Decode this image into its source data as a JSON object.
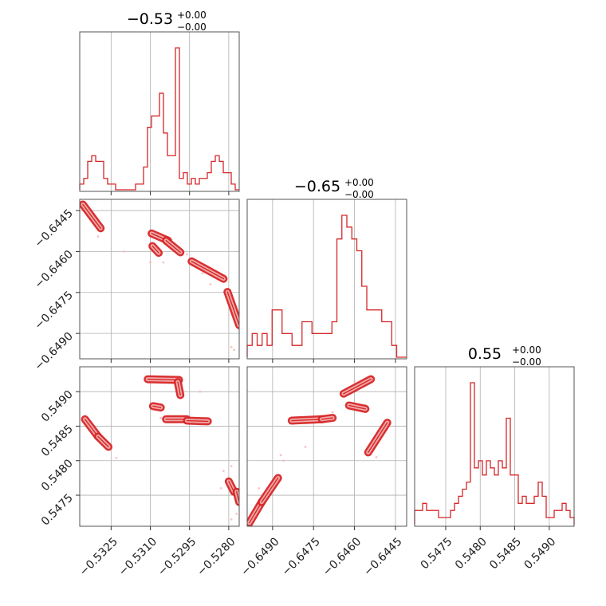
{
  "chart_data": {
    "type": "corner",
    "color": "#d62728",
    "grid": true,
    "parameters": [
      {
        "title_value": "−0.53",
        "title_plus": "+0.00",
        "title_minus": "−0.00",
        "range": [
          -0.5337,
          -0.5276
        ],
        "ticks": [
          -0.5325,
          -0.531,
          -0.5295,
          -0.528
        ],
        "tick_labels": [
          "−0.5325",
          "−0.5310",
          "−0.5295",
          "−0.5280"
        ]
      },
      {
        "title_value": "−0.65",
        "title_plus": "+0.00",
        "title_minus": "−0.00",
        "range": [
          -0.64993,
          -0.64409
        ],
        "ticks": [
          -0.6445,
          -0.646,
          -0.6475,
          -0.649
        ],
        "tick_labels": [
          "−0.6445",
          "−0.6460",
          "−0.6475",
          "−0.6490"
        ]
      },
      {
        "title_value": "0.55",
        "title_plus": "+0.00",
        "title_minus": "−0.00",
        "range": [
          0.54705,
          0.54936
        ],
        "ticks": [
          0.5475,
          0.548,
          0.5485,
          0.549
        ],
        "tick_labels": [
          "0.5475",
          "0.5480",
          "0.5485",
          "0.5490"
        ]
      }
    ],
    "histograms": [
      [
        1,
        2,
        5,
        6,
        5,
        5,
        2,
        1,
        1,
        0,
        0,
        0,
        0,
        0,
        1,
        1,
        4,
        11,
        13,
        13,
        17,
        10,
        6,
        6,
        25,
        2,
        3,
        1,
        2,
        1,
        2,
        2,
        3,
        5,
        6,
        5,
        3,
        3,
        1,
        0
      ],
      [
        1,
        2,
        1,
        2,
        1,
        4,
        4,
        2,
        2,
        1,
        1,
        3,
        3,
        2,
        2,
        2,
        2,
        3,
        10,
        12,
        11,
        10,
        9,
        6,
        4,
        4,
        4,
        3,
        3,
        1,
        0,
        0
      ],
      [
        2,
        2,
        3,
        2,
        2,
        2,
        1,
        1,
        1,
        2,
        3,
        4,
        5,
        6,
        20,
        8,
        9,
        7,
        9,
        8,
        7,
        9,
        8,
        15,
        7,
        7,
        3,
        4,
        3,
        3,
        4,
        6,
        4,
        1,
        1,
        2,
        2,
        3,
        2,
        1
      ]
    ],
    "pairs": [
      {
        "x_param": 0,
        "y_param": 1,
        "segments": [
          [
            [
              -0.53358,
              -0.64428
            ],
            [
              -0.5329,
              -0.64515
            ]
          ],
          [
            [
              -0.53095,
              -0.64534
            ],
            [
              -0.53032,
              -0.6456
            ]
          ],
          [
            [
              -0.5304,
              -0.6456
            ],
            [
              -0.52985,
              -0.64603
            ]
          ],
          [
            [
              -0.53092,
              -0.6458
            ],
            [
              -0.53068,
              -0.64605
            ]
          ],
          [
            [
              -0.52942,
              -0.64636
            ],
            [
              -0.5282,
              -0.647
            ]
          ],
          [
            [
              -0.52805,
              -0.64748
            ],
            [
              -0.5276,
              -0.6487
            ]
          ]
        ],
        "points": [
          [
            -0.533,
            -0.64545
          ],
          [
            -0.532,
            -0.646
          ],
          [
            -0.5305,
            -0.6464
          ],
          [
            -0.529,
            -0.6468
          ],
          [
            -0.5287,
            -0.6472
          ],
          [
            -0.5279,
            -0.6495
          ],
          [
            -0.5278,
            -0.6496
          ],
          [
            -0.531,
            -0.6464
          ],
          [
            -0.5296,
            -0.6461
          ]
        ]
      },
      {
        "x_param": 0,
        "y_param": 2,
        "segments": [
          [
            [
              -0.5311,
              0.54918
            ],
            [
              -0.5299,
              0.54917
            ]
          ],
          [
            [
              -0.52995,
              0.54914
            ],
            [
              -0.52985,
              0.54895
            ]
          ],
          [
            [
              -0.5309,
              0.54879
            ],
            [
              -0.5306,
              0.54877
            ]
          ],
          [
            [
              -0.5304,
              0.5486
            ],
            [
              -0.5296,
              0.5486
            ]
          ],
          [
            [
              -0.5296,
              0.54858
            ],
            [
              -0.5288,
              0.54857
            ]
          ],
          [
            [
              -0.5335,
              0.5486
            ],
            [
              -0.533,
              0.54835
            ]
          ],
          [
            [
              -0.533,
              0.54835
            ],
            [
              -0.5326,
              0.5482
            ]
          ],
          [
            [
              -0.528,
              0.5477
            ],
            [
              -0.5278,
              0.54755
            ]
          ],
          [
            [
              -0.5277,
              0.54755
            ],
            [
              -0.5276,
              0.5474
            ]
          ]
        ],
        "points": [
          [
            -0.5282,
            0.54785
          ],
          [
            -0.5279,
            0.54792
          ],
          [
            -0.5323,
            0.54804
          ],
          [
            -0.5291,
            0.549
          ],
          [
            -0.5306,
            0.54862
          ],
          [
            -0.5277,
            0.54723
          ],
          [
            -0.5279,
            0.54715
          ],
          [
            -0.5283,
            0.5476
          ]
        ]
      },
      {
        "x_param": 1,
        "y_param": 2,
        "segments": [
          [
            [
              -0.64985,
              0.5471
            ],
            [
              -0.6494,
              0.5474
            ]
          ],
          [
            [
              -0.6494,
              0.5474
            ],
            [
              -0.6488,
              0.54775
            ]
          ],
          [
            [
              -0.6483,
              0.54858
            ],
            [
              -0.6472,
              0.5486
            ]
          ],
          [
            [
              -0.6472,
              0.5486
            ],
            [
              -0.6468,
              0.54862
            ]
          ],
          [
            [
              -0.6464,
              0.54897
            ],
            [
              -0.6454,
              0.54918
            ]
          ],
          [
            [
              -0.6462,
              0.5488
            ],
            [
              -0.6456,
              0.54875
            ]
          ],
          [
            [
              -0.6455,
              0.54812
            ],
            [
              -0.6448,
              0.54855
            ]
          ]
        ],
        "points": [
          [
            -0.6486,
            0.548
          ],
          [
            -0.6487,
            0.54808
          ],
          [
            -0.6478,
            0.5482
          ],
          [
            -0.6495,
            0.5476
          ],
          [
            -0.6468,
            0.5487
          ],
          [
            -0.646,
            0.54915
          ],
          [
            -0.6456,
            0.5488
          ],
          [
            -0.6452,
            0.54805
          ]
        ]
      }
    ]
  }
}
